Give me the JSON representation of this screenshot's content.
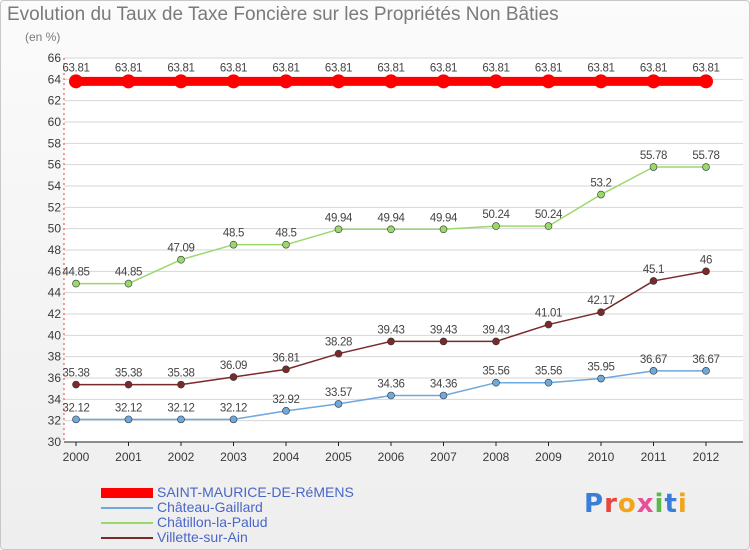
{
  "title": "Evolution du Taux de Taxe Foncière sur les Propriétés Non Bâties",
  "unit": "(en %)",
  "logo": {
    "text": "Proxiti",
    "letter_colors": [
      "#3b7dd8",
      "#e8463c",
      "#f2a51a",
      "#e84f9a",
      "#5cb84a",
      "#3b7dd8",
      "#f2a51a"
    ]
  },
  "chart_data": {
    "type": "line",
    "categories": [
      "2000",
      "2001",
      "2002",
      "2003",
      "2004",
      "2005",
      "2006",
      "2007",
      "2008",
      "2009",
      "2010",
      "2011",
      "2012"
    ],
    "ylim": [
      30,
      66
    ],
    "yticks": [
      30,
      32,
      34,
      36,
      38,
      40,
      42,
      44,
      46,
      48,
      50,
      52,
      54,
      56,
      58,
      60,
      62,
      64,
      66
    ],
    "grid": "horizontal",
    "legend_position": "bottom-left",
    "series": [
      {
        "name": "SAINT-MAURICE-DE-RéMENS",
        "color": "#ff0000",
        "values": [
          63.81,
          63.81,
          63.81,
          63.81,
          63.81,
          63.81,
          63.81,
          63.81,
          63.81,
          63.81,
          63.81,
          63.81,
          63.81
        ]
      },
      {
        "name": "Château-Gaillard",
        "color": "#6fa8dc",
        "values": [
          32.12,
          32.12,
          32.12,
          32.12,
          32.92,
          33.57,
          34.36,
          34.36,
          35.56,
          35.56,
          35.95,
          36.67,
          36.67
        ]
      },
      {
        "name": "Châtillon-la-Palud",
        "color": "#9bd86c",
        "values": [
          44.85,
          44.85,
          47.09,
          48.5,
          48.5,
          49.94,
          49.94,
          49.94,
          50.24,
          50.24,
          53.2,
          55.78,
          55.78
        ]
      },
      {
        "name": "Villette-sur-Ain",
        "color": "#7a2a2a",
        "values": [
          35.38,
          35.38,
          35.38,
          36.09,
          36.81,
          38.28,
          39.43,
          39.43,
          39.43,
          41.01,
          42.17,
          45.1,
          46
        ]
      }
    ],
    "data_labels": [
      [
        "63.81",
        "63.81",
        "63.81",
        "63.81",
        "63.81",
        "63.81",
        "63.81",
        "63.81",
        "63.81",
        "63.81",
        "63.81",
        "63.81",
        "63.81"
      ],
      [
        "32.12",
        "32.12",
        "32.12",
        "32.12",
        "32.92",
        "33.57",
        "34.36",
        "34.36",
        "35.56",
        "35.56",
        "35.95",
        "36.67",
        "36.67"
      ],
      [
        "44.85",
        "44.85",
        "47.09",
        "48.5",
        "48.5",
        "49.94",
        "49.94",
        "49.94",
        "50.24",
        "50.24",
        "53.2",
        "55.78",
        "55.78"
      ],
      [
        "35.38",
        "35.38",
        "35.38",
        "36.09",
        "36.81",
        "38.28",
        "39.43",
        "39.43",
        "39.43",
        "41.01",
        "42.17",
        "45.1",
        "46"
      ]
    ]
  }
}
